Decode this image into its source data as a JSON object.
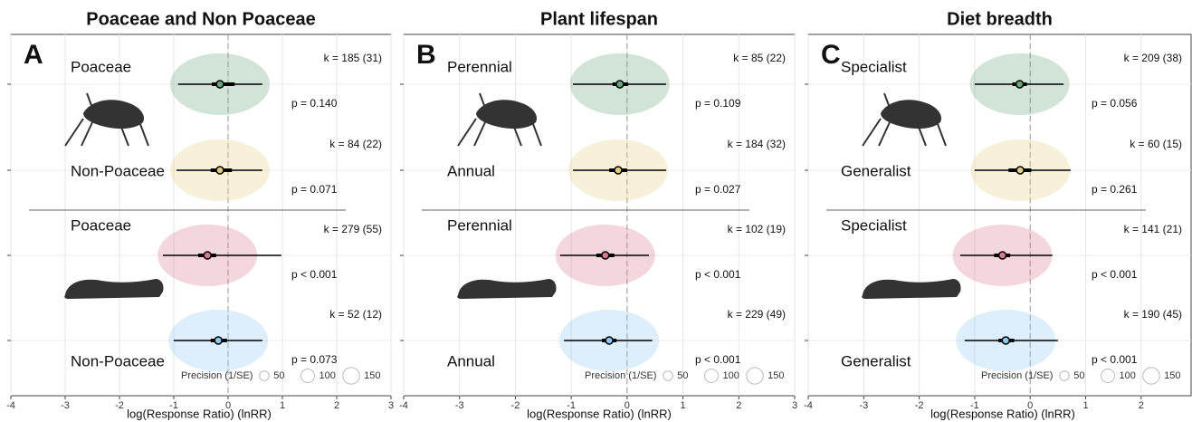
{
  "chart_data": [
    {
      "type": "orchard",
      "title": "Poaceae and Non Poaceae",
      "letter": "A",
      "x_label": "log(Response Ratio) (lnRR)",
      "xlim": [
        -4,
        3
      ],
      "xticks": [
        -4,
        -3,
        -2,
        -1,
        0,
        1,
        2,
        3
      ],
      "legend_title": "Precision (1/SE)",
      "legend_sizes": [
        50,
        100,
        150
      ],
      "groups": [
        {
          "label": "Poaceae",
          "k_text": "k = 185 (31)",
          "p_text": "p = 0.140",
          "estimate": -0.15,
          "ci": [
            -0.3,
            0.12
          ],
          "pi": [
            -0.92,
            0.63
          ],
          "color": "#6aa57a"
        },
        {
          "label": "Non-Poaceae",
          "k_text": "k = 84 (22)",
          "p_text": "p = 0.071",
          "estimate": -0.15,
          "ci": [
            -0.32,
            0.07
          ],
          "pi": [
            -0.95,
            0.63
          ],
          "color": "#e3cf84"
        },
        {
          "label": "Poaceae",
          "k_text": "k = 279 (55)",
          "p_text": "p < 0.001",
          "estimate": -0.38,
          "ci": [
            -0.55,
            -0.22
          ],
          "pi": [
            -1.2,
            0.98
          ],
          "color": "#d87a8a"
        },
        {
          "label": "Non-Poaceae",
          "k_text": "k = 52 (12)",
          "p_text": "p = 0.073",
          "estimate": -0.18,
          "ci": [
            -0.32,
            -0.02
          ],
          "pi": [
            -1.0,
            0.63
          ],
          "color": "#8ec9ee"
        }
      ]
    },
    {
      "type": "orchard",
      "title": "Plant lifespan",
      "letter": "B",
      "x_label": "log(Response Ratio) (lnRR)",
      "xlim": [
        -4,
        3
      ],
      "xticks": [
        -4,
        -3,
        -2,
        -1,
        0,
        1,
        2,
        3
      ],
      "legend_title": "Precision (1/SE)",
      "legend_sizes": [
        50,
        100,
        150
      ],
      "groups": [
        {
          "label": "Perennial",
          "k_text": "k = 85 (22)",
          "p_text": "p = 0.109",
          "estimate": -0.13,
          "ci": [
            -0.26,
            0.02
          ],
          "pi": [
            -0.97,
            0.7
          ],
          "color": "#6aa57a"
        },
        {
          "label": "Annual",
          "k_text": "k = 184 (32)",
          "p_text": "p = 0.027",
          "estimate": -0.16,
          "ci": [
            -0.32,
            0.0
          ],
          "pi": [
            -0.97,
            0.7
          ],
          "color": "#e3cf84"
        },
        {
          "label": "Perennial",
          "k_text": "k = 102 (19)",
          "p_text": "p < 0.001",
          "estimate": -0.39,
          "ci": [
            -0.55,
            -0.23
          ],
          "pi": [
            -1.2,
            0.39
          ],
          "color": "#d87a8a"
        },
        {
          "label": "Annual",
          "k_text": "k = 229 (49)",
          "p_text": "p < 0.001",
          "estimate": -0.32,
          "ci": [
            -0.45,
            -0.19
          ],
          "pi": [
            -1.13,
            0.45
          ],
          "color": "#8ec9ee"
        }
      ]
    },
    {
      "type": "orchard",
      "title": "Diet breadth",
      "letter": "C",
      "x_label": "log(Response Ratio) (lnRR)",
      "xlim": [
        -4,
        2.9
      ],
      "xticks": [
        -4,
        -3,
        -2,
        -1,
        0,
        1,
        2
      ],
      "legend_title": "Precision (1/SE)",
      "legend_sizes": [
        50,
        100,
        150
      ],
      "groups": [
        {
          "label": "Specialist",
          "k_text": "k = 209 (38)",
          "p_text": "p = 0.056",
          "estimate": -0.19,
          "ci": [
            -0.32,
            -0.06
          ],
          "pi": [
            -1.0,
            0.6
          ],
          "color": "#6aa57a"
        },
        {
          "label": "Generalist",
          "k_text": "k = 60 (15)",
          "p_text": "p = 0.261",
          "estimate": -0.18,
          "ci": [
            -0.39,
            0.02
          ],
          "pi": [
            -1.0,
            0.73
          ],
          "color": "#e3cf84"
        },
        {
          "label": "Specialist",
          "k_text": "k = 141 (21)",
          "p_text": "p < 0.001",
          "estimate": -0.5,
          "ci": [
            -0.65,
            -0.36
          ],
          "pi": [
            -1.26,
            0.4
          ],
          "color": "#d87a8a"
        },
        {
          "label": "Generalist",
          "k_text": "k = 190 (45)",
          "p_text": "p < 0.001",
          "estimate": -0.44,
          "ci": [
            -0.57,
            -0.29
          ],
          "pi": [
            -1.18,
            0.5
          ],
          "color": "#8ec9ee"
        }
      ]
    }
  ]
}
